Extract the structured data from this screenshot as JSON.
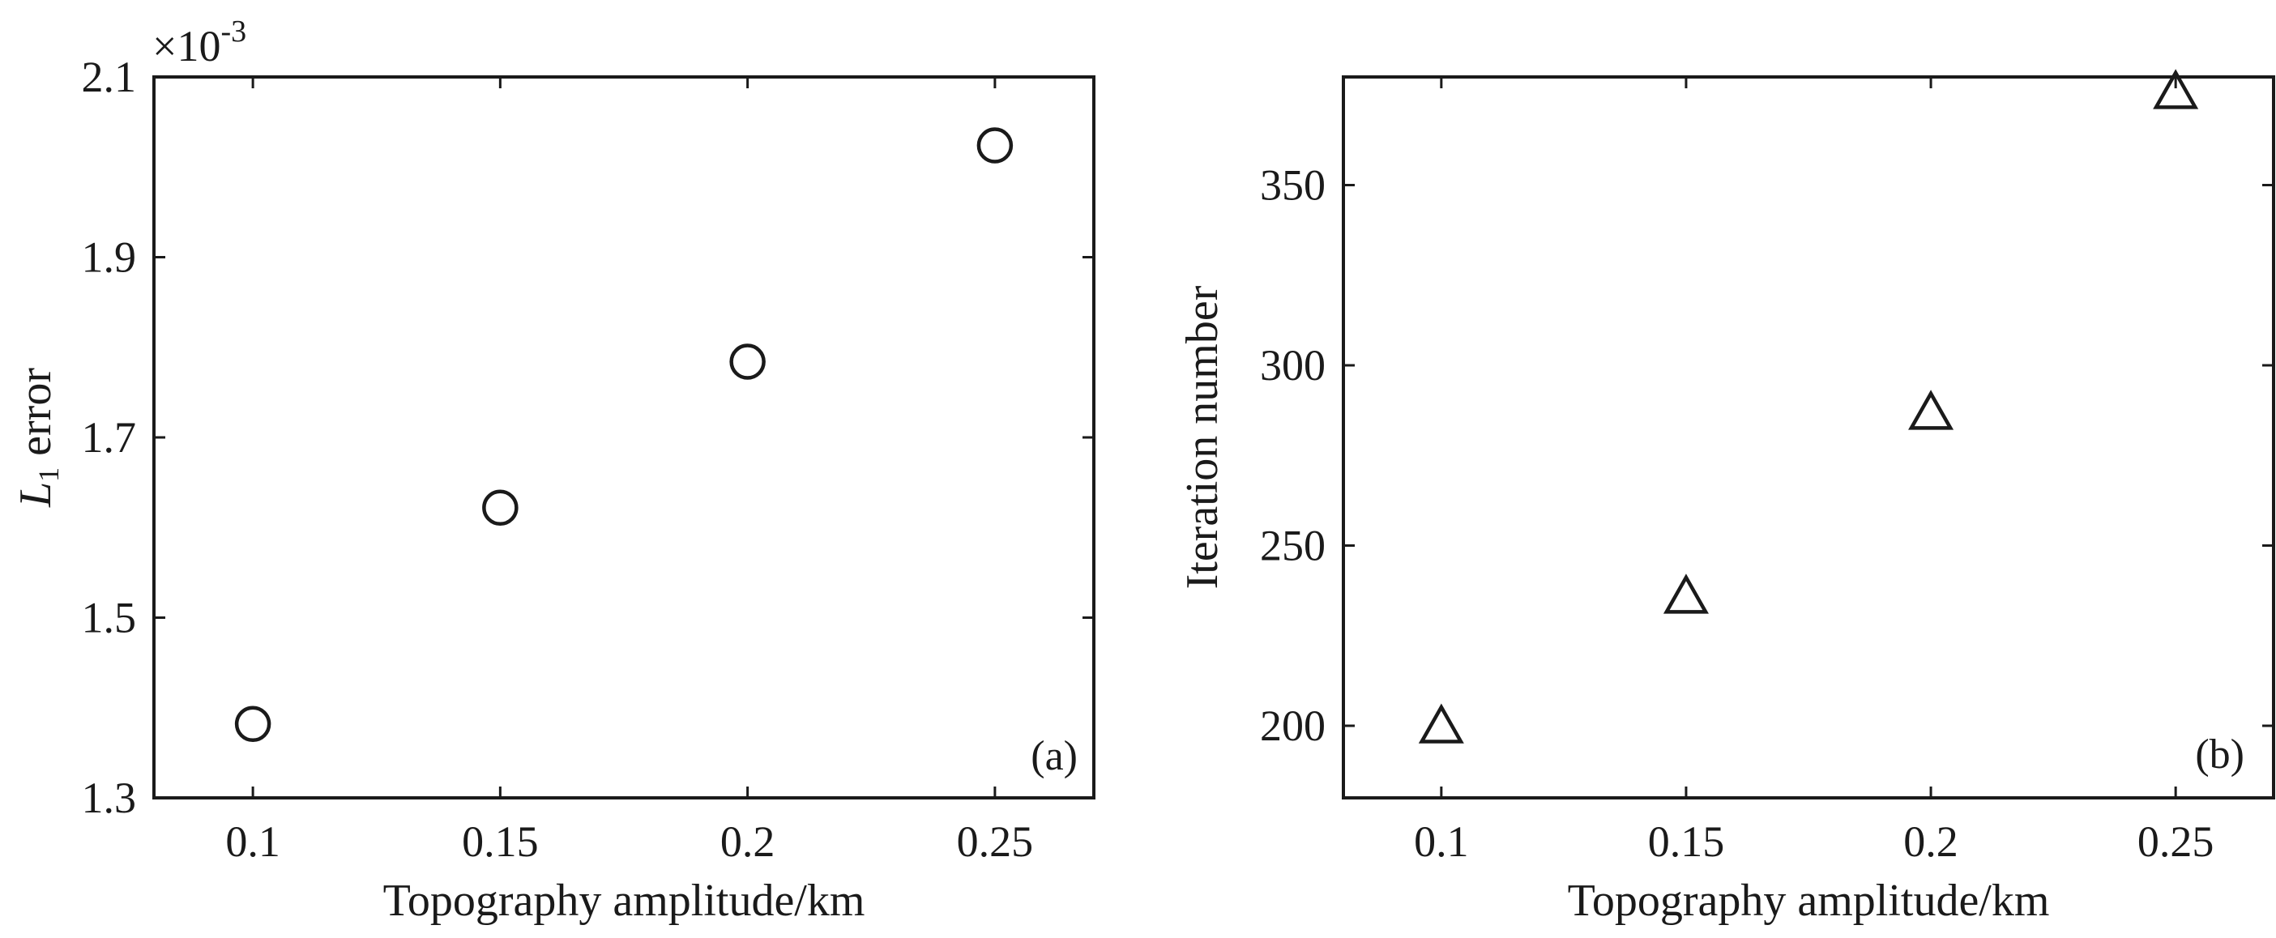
{
  "chart_data": [
    {
      "type": "scatter",
      "panel": "(a)",
      "x": [
        0.1,
        0.15,
        0.2,
        0.25
      ],
      "y": [
        0.001382,
        0.001622,
        0.001784,
        0.002024
      ],
      "marker": "circle",
      "xlabel": "Topography amplitude/km",
      "ylabel_main": "L",
      "ylabel_sub": "1",
      "ylabel_rest": " error",
      "exponent_label": "×10",
      "exponent_power": "-3",
      "xlim": [
        0.08,
        0.27
      ],
      "ylim": [
        0.0013,
        0.0021
      ],
      "xticks": [
        0.1,
        0.15,
        0.2,
        0.25
      ],
      "xtick_labels": [
        "0.1",
        "0.15",
        "0.2",
        "0.25"
      ],
      "yticks": [
        0.0013,
        0.0015,
        0.0017,
        0.0019,
        0.0021
      ],
      "ytick_labels": [
        "1.3",
        "1.5",
        "1.7",
        "1.9",
        "2.1"
      ],
      "grid": false,
      "color": "#1a1a1a"
    },
    {
      "type": "scatter",
      "panel": "(b)",
      "x": [
        0.1,
        0.15,
        0.2,
        0.25
      ],
      "y": [
        200,
        236,
        287,
        376
      ],
      "marker": "triangle",
      "xlabel": "Topography amplitude/km",
      "ylabel": "Iteration number",
      "xlim": [
        0.08,
        0.27
      ],
      "ylim": [
        180,
        380
      ],
      "xticks": [
        0.1,
        0.15,
        0.2,
        0.25
      ],
      "xtick_labels": [
        "0.1",
        "0.15",
        "0.2",
        "0.25"
      ],
      "yticks": [
        200,
        250,
        300,
        350
      ],
      "ytick_labels": [
        "200",
        "250",
        "300",
        "350"
      ],
      "grid": false,
      "color": "#1a1a1a"
    }
  ]
}
